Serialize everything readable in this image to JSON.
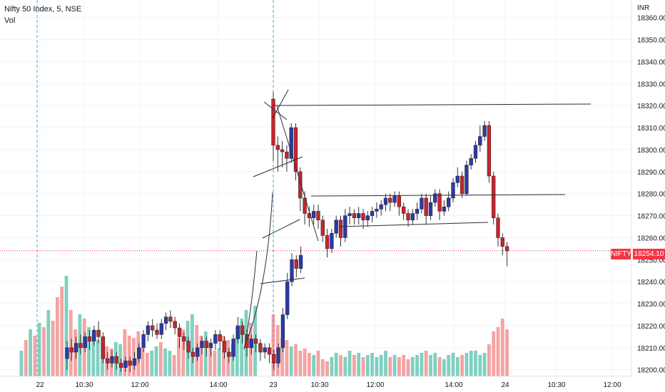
{
  "legend": {
    "symbol_line": "Nifty 50 Index, 5, NSE",
    "volume_label": "Vol"
  },
  "currency": "INR",
  "price_tag": {
    "symbol": "NIFTY",
    "price": "18254.10"
  },
  "colors": {
    "up_body": "#2b3aa8",
    "down_body": "#c8242e",
    "vol_up": "#7fd0c0",
    "vol_down": "#f4a3a3",
    "price_line": "#f23645",
    "session_line": "#4aa3df",
    "grid": "#f0f3fa",
    "drawing": "#2a2e39"
  },
  "chart_data": {
    "type": "candlestick",
    "title": "Nifty 50 Index, 5, NSE",
    "price_axis_ticks": [
      "18360.00",
      "18350.00",
      "18340.00",
      "18330.00",
      "18320.00",
      "18310.00",
      "18300.00",
      "18290.00",
      "18280.00",
      "18270.00",
      "18260.00",
      "18250.00",
      "18240.00",
      "18230.00",
      "18220.00",
      "18210.00",
      "18200.00"
    ],
    "time_axis_ticks": [
      "22",
      "10:30",
      "12:00",
      "14:00",
      "23",
      "10:30",
      "12:00",
      "14:00",
      "24",
      "10:30",
      "12:00"
    ],
    "ylim": [
      18197,
      18368
    ],
    "last_price": 18254.1,
    "session_breaks": [
      "22",
      "23"
    ],
    "grid": true,
    "candles_day22": [
      [
        18205,
        18210,
        18200,
        18213
      ],
      [
        18210,
        18208,
        18204,
        18214
      ],
      [
        18208,
        18212,
        18205,
        18215
      ],
      [
        18212,
        18210,
        18207,
        18216
      ],
      [
        18210,
        18215,
        18208,
        18217
      ],
      [
        18215,
        18213,
        18209,
        18218
      ],
      [
        18213,
        18218,
        18211,
        18220
      ],
      [
        18218,
        18215,
        18212,
        18222
      ],
      [
        18215,
        18205,
        18203,
        18217
      ],
      [
        18205,
        18203,
        18200,
        18208
      ],
      [
        18203,
        18206,
        18201,
        18209
      ],
      [
        18206,
        18203,
        18200,
        18208
      ],
      [
        18203,
        18201,
        18199,
        18205
      ],
      [
        18201,
        18204,
        18199,
        18206
      ],
      [
        18204,
        18202,
        18199,
        18206
      ],
      [
        18202,
        18205,
        18200,
        18208
      ],
      [
        18205,
        18210,
        18203,
        18212
      ],
      [
        18210,
        18216,
        18208,
        18218
      ],
      [
        18216,
        18220,
        18213,
        18222
      ],
      [
        18220,
        18218,
        18215,
        18223
      ],
      [
        18218,
        18216,
        18214,
        18221
      ],
      [
        18216,
        18221,
        18214,
        18223
      ],
      [
        18221,
        18224,
        18218,
        18226
      ],
      [
        18224,
        18222,
        18219,
        18227
      ],
      [
        18222,
        18219,
        18216,
        18224
      ],
      [
        18219,
        18215,
        18210,
        18221
      ],
      [
        18215,
        18213,
        18209,
        18217
      ],
      [
        18213,
        18208,
        18205,
        18215
      ],
      [
        18208,
        18206,
        18203,
        18210
      ],
      [
        18206,
        18210,
        18204,
        18212
      ],
      [
        18210,
        18213,
        18207,
        18215
      ],
      [
        18213,
        18210,
        18206,
        18215
      ],
      [
        18210,
        18212,
        18206,
        18214
      ],
      [
        18212,
        18216,
        18209,
        18218
      ],
      [
        18216,
        18213,
        18209,
        18218
      ],
      [
        18213,
        18208,
        18205,
        18215
      ],
      [
        18208,
        18206,
        18203,
        18210
      ],
      [
        18206,
        18214,
        18204,
        18216
      ],
      [
        18214,
        18220,
        18212,
        18224
      ],
      [
        18220,
        18216,
        18212,
        18222
      ],
      [
        18216,
        18210,
        18206,
        18218
      ],
      [
        18210,
        18214,
        18207,
        18216
      ],
      [
        18214,
        18212,
        18208,
        18216
      ],
      [
        18212,
        18208,
        18204,
        18214
      ],
      [
        18208,
        18210,
        18205,
        18212
      ],
      [
        18210,
        18207,
        18203,
        18212
      ],
      [
        18207,
        18203,
        18200,
        18209
      ],
      [
        18203,
        18210,
        18201,
        18212
      ],
      [
        18210,
        18225,
        18208,
        18228
      ],
      [
        18225,
        18240,
        18223,
        18244
      ],
      [
        18240,
        18250,
        18238,
        18253
      ],
      [
        18250,
        18246,
        18242,
        18252
      ],
      [
        18246,
        18252,
        18244,
        18256
      ]
    ],
    "candles_day23": [
      [
        18323,
        18302,
        18295,
        18326
      ],
      [
        18302,
        18300,
        18290,
        18306
      ],
      [
        18300,
        18299,
        18292,
        18304
      ],
      [
        18299,
        18296,
        18290,
        18302
      ],
      [
        18296,
        18310,
        18294,
        18312
      ],
      [
        18310,
        18290,
        18286,
        18312
      ],
      [
        18290,
        18278,
        18272,
        18292
      ],
      [
        18278,
        18271,
        18266,
        18281
      ],
      [
        18271,
        18269,
        18265,
        18274
      ],
      [
        18269,
        18272,
        18266,
        18275
      ],
      [
        18272,
        18268,
        18264,
        18275
      ],
      [
        18268,
        18261,
        18258,
        18270
      ],
      [
        18261,
        18255,
        18251,
        18264
      ],
      [
        18255,
        18262,
        18253,
        18264
      ],
      [
        18262,
        18268,
        18260,
        18270
      ],
      [
        18268,
        18260,
        18256,
        18270
      ],
      [
        18260,
        18270,
        18258,
        18273
      ],
      [
        18270,
        18271,
        18266,
        18274
      ],
      [
        18271,
        18269,
        18266,
        18273
      ],
      [
        18269,
        18271,
        18266,
        18274
      ],
      [
        18271,
        18268,
        18264,
        18273
      ],
      [
        18268,
        18270,
        18265,
        18272
      ],
      [
        18270,
        18272,
        18267,
        18274
      ],
      [
        18272,
        18273,
        18269,
        18276
      ],
      [
        18273,
        18275,
        18270,
        18277
      ],
      [
        18275,
        18278,
        18272,
        18280
      ],
      [
        18278,
        18276,
        18272,
        18280
      ],
      [
        18276,
        18279,
        18274,
        18281
      ],
      [
        18279,
        18274,
        18270,
        18281
      ],
      [
        18274,
        18271,
        18268,
        18276
      ],
      [
        18271,
        18268,
        18265,
        18273
      ],
      [
        18268,
        18271,
        18266,
        18273
      ],
      [
        18271,
        18273,
        18268,
        18276
      ],
      [
        18273,
        18278,
        18271,
        18280
      ],
      [
        18278,
        18270,
        18266,
        18280
      ],
      [
        18270,
        18276,
        18268,
        18279
      ],
      [
        18276,
        18280,
        18274,
        18282
      ],
      [
        18280,
        18272,
        18268,
        18282
      ],
      [
        18272,
        18274,
        18270,
        18277
      ],
      [
        18274,
        18278,
        18272,
        18281
      ],
      [
        18278,
        18285,
        18276,
        18287
      ],
      [
        18285,
        18288,
        18283,
        18292
      ],
      [
        18288,
        18280,
        18278,
        18290
      ],
      [
        18280,
        18293,
        18279,
        18295
      ],
      [
        18293,
        18296,
        18291,
        18298
      ],
      [
        18296,
        18302,
        18294,
        18304
      ],
      [
        18302,
        18306,
        18299,
        18311
      ],
      [
        18306,
        18311,
        18304,
        18313
      ],
      [
        18311,
        18288,
        18285,
        18313
      ],
      [
        18288,
        18269,
        18266,
        18290
      ],
      [
        18269,
        18260,
        18256,
        18271
      ],
      [
        18260,
        18256,
        18252,
        18262
      ],
      [
        18256,
        18254,
        18247,
        18258
      ]
    ],
    "volumes_day22": [
      12,
      17,
      22,
      19,
      25,
      23,
      31,
      26,
      37,
      42,
      47,
      31,
      22,
      29,
      27,
      23,
      21,
      17,
      18,
      14,
      13,
      16,
      15,
      22,
      19,
      18,
      21,
      13,
      11,
      12,
      14,
      16,
      13,
      12,
      10,
      18,
      22,
      26,
      29,
      24,
      19,
      21,
      16,
      12,
      13,
      19,
      17,
      15,
      23,
      27,
      31,
      25,
      33
    ],
    "volumes_day23": [
      29,
      24,
      18,
      17,
      14,
      15,
      12,
      13,
      11,
      10,
      12,
      8,
      7,
      9,
      11,
      10,
      9,
      12,
      10,
      11,
      9,
      10,
      11,
      9,
      10,
      12,
      9,
      10,
      9,
      10,
      8,
      9,
      10,
      11,
      12,
      10,
      11,
      9,
      8,
      10,
      11,
      9,
      10,
      11,
      12,
      12,
      10,
      11,
      15,
      21,
      23,
      27,
      22
    ]
  }
}
